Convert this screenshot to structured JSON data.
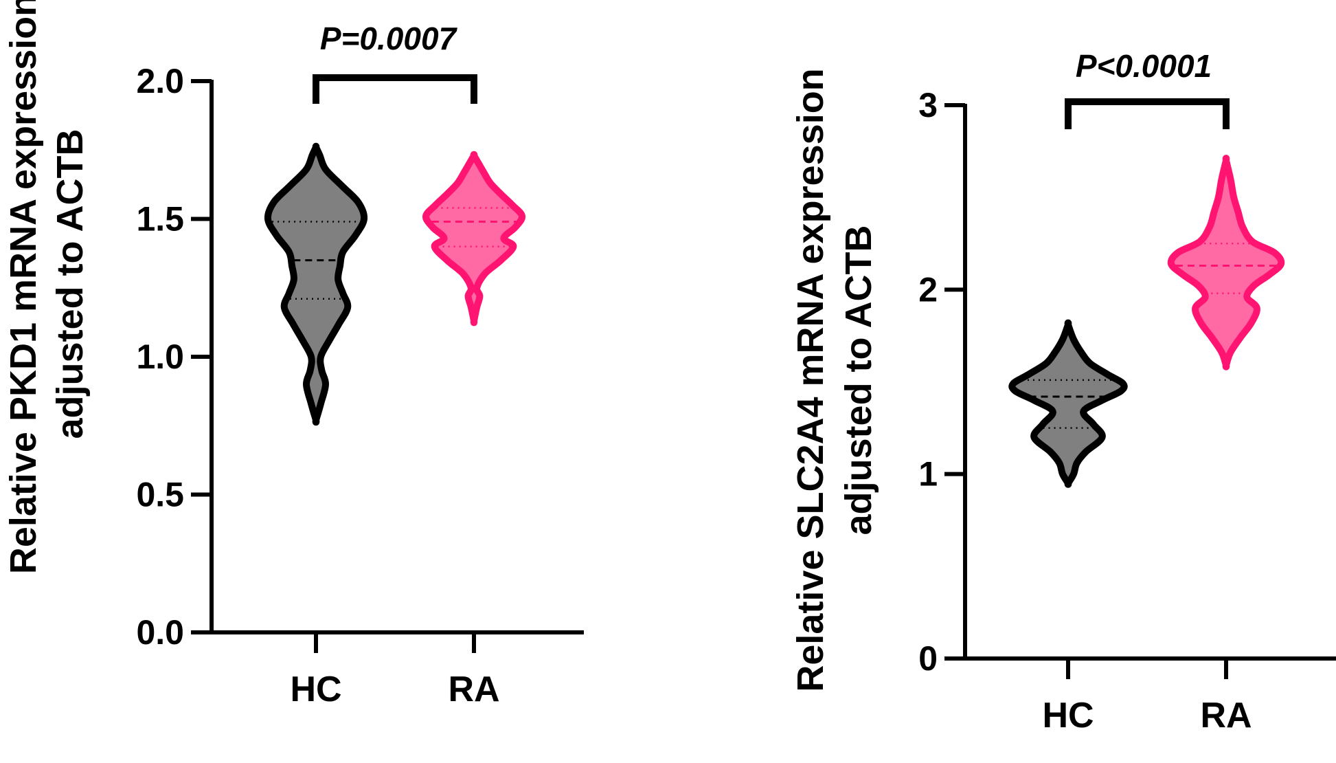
{
  "chart_data": [
    {
      "type": "violin",
      "ylabel_line1": "Relative PKD1 mRNA expression",
      "ylabel_line2": "adjusted to ACTB",
      "ylim": [
        0,
        2.0
      ],
      "yticks": [
        "0.0",
        "0.5",
        "1.0",
        "1.5",
        "2.0"
      ],
      "ytick_values": [
        0,
        0.5,
        1.0,
        1.5,
        2.0
      ],
      "categories": [
        "HC",
        "RA"
      ],
      "significance": "P=0.0007",
      "colors": {
        "HC": "#808080",
        "RA": "#ff6aa5"
      },
      "edge_colors": {
        "HC": "#000000",
        "RA": "#ff1472"
      },
      "series": [
        {
          "category": "HC",
          "min": 0.77,
          "max": 1.76,
          "median": 1.35,
          "q1": 1.21,
          "q3": 1.49,
          "profile": [
            [
              0.77,
              0.0
            ],
            [
              0.83,
              0.1
            ],
            [
              0.9,
              0.2
            ],
            [
              0.95,
              0.12
            ],
            [
              1.0,
              0.1
            ],
            [
              1.06,
              0.28
            ],
            [
              1.12,
              0.48
            ],
            [
              1.18,
              0.66
            ],
            [
              1.23,
              0.56
            ],
            [
              1.28,
              0.46
            ],
            [
              1.33,
              0.5
            ],
            [
              1.38,
              0.56
            ],
            [
              1.44,
              0.82
            ],
            [
              1.5,
              1.0
            ],
            [
              1.56,
              0.88
            ],
            [
              1.62,
              0.54
            ],
            [
              1.68,
              0.2
            ],
            [
              1.73,
              0.08
            ],
            [
              1.76,
              0.0
            ]
          ]
        },
        {
          "category": "RA",
          "min": 1.13,
          "max": 1.73,
          "median": 1.49,
          "q1": 1.4,
          "q3": 1.54,
          "profile": [
            [
              1.13,
              0.0
            ],
            [
              1.18,
              0.06
            ],
            [
              1.22,
              0.12
            ],
            [
              1.25,
              0.06
            ],
            [
              1.3,
              0.22
            ],
            [
              1.35,
              0.56
            ],
            [
              1.4,
              0.82
            ],
            [
              1.43,
              0.62
            ],
            [
              1.47,
              0.86
            ],
            [
              1.51,
              1.0
            ],
            [
              1.55,
              0.8
            ],
            [
              1.59,
              0.56
            ],
            [
              1.63,
              0.34
            ],
            [
              1.67,
              0.2
            ],
            [
              1.7,
              0.1
            ],
            [
              1.73,
              0.0
            ]
          ]
        }
      ]
    },
    {
      "type": "violin",
      "ylabel_line1": "Relative SLC2A4 mRNA expression",
      "ylabel_line2": "adjusted to ACTB",
      "ylim": [
        0,
        3
      ],
      "yticks": [
        "0",
        "1",
        "2",
        "3"
      ],
      "ytick_values": [
        0,
        1,
        2,
        3
      ],
      "categories": [
        "HC",
        "RA"
      ],
      "significance": "P<0.0001",
      "colors": {
        "HC": "#808080",
        "RA": "#ff6aa5"
      },
      "edge_colors": {
        "HC": "#000000",
        "RA": "#ff1472"
      },
      "series": [
        {
          "category": "HC",
          "min": 0.95,
          "max": 1.81,
          "median": 1.42,
          "q1": 1.25,
          "q3": 1.51,
          "profile": [
            [
              0.95,
              0.0
            ],
            [
              1.0,
              0.1
            ],
            [
              1.06,
              0.16
            ],
            [
              1.12,
              0.32
            ],
            [
              1.2,
              0.62
            ],
            [
              1.27,
              0.46
            ],
            [
              1.34,
              0.28
            ],
            [
              1.4,
              0.62
            ],
            [
              1.45,
              0.96
            ],
            [
              1.49,
              1.0
            ],
            [
              1.54,
              0.72
            ],
            [
              1.6,
              0.4
            ],
            [
              1.66,
              0.24
            ],
            [
              1.73,
              0.1
            ],
            [
              1.81,
              0.0
            ]
          ]
        },
        {
          "category": "RA",
          "min": 1.59,
          "max": 2.7,
          "median": 2.13,
          "q1": 1.98,
          "q3": 2.25,
          "profile": [
            [
              1.59,
              0.0
            ],
            [
              1.66,
              0.08
            ],
            [
              1.74,
              0.26
            ],
            [
              1.82,
              0.46
            ],
            [
              1.9,
              0.56
            ],
            [
              1.96,
              0.38
            ],
            [
              2.02,
              0.5
            ],
            [
              2.08,
              0.78
            ],
            [
              2.14,
              1.0
            ],
            [
              2.2,
              0.88
            ],
            [
              2.26,
              0.48
            ],
            [
              2.34,
              0.3
            ],
            [
              2.42,
              0.22
            ],
            [
              2.5,
              0.14
            ],
            [
              2.6,
              0.08
            ],
            [
              2.7,
              0.0
            ]
          ]
        }
      ]
    }
  ]
}
